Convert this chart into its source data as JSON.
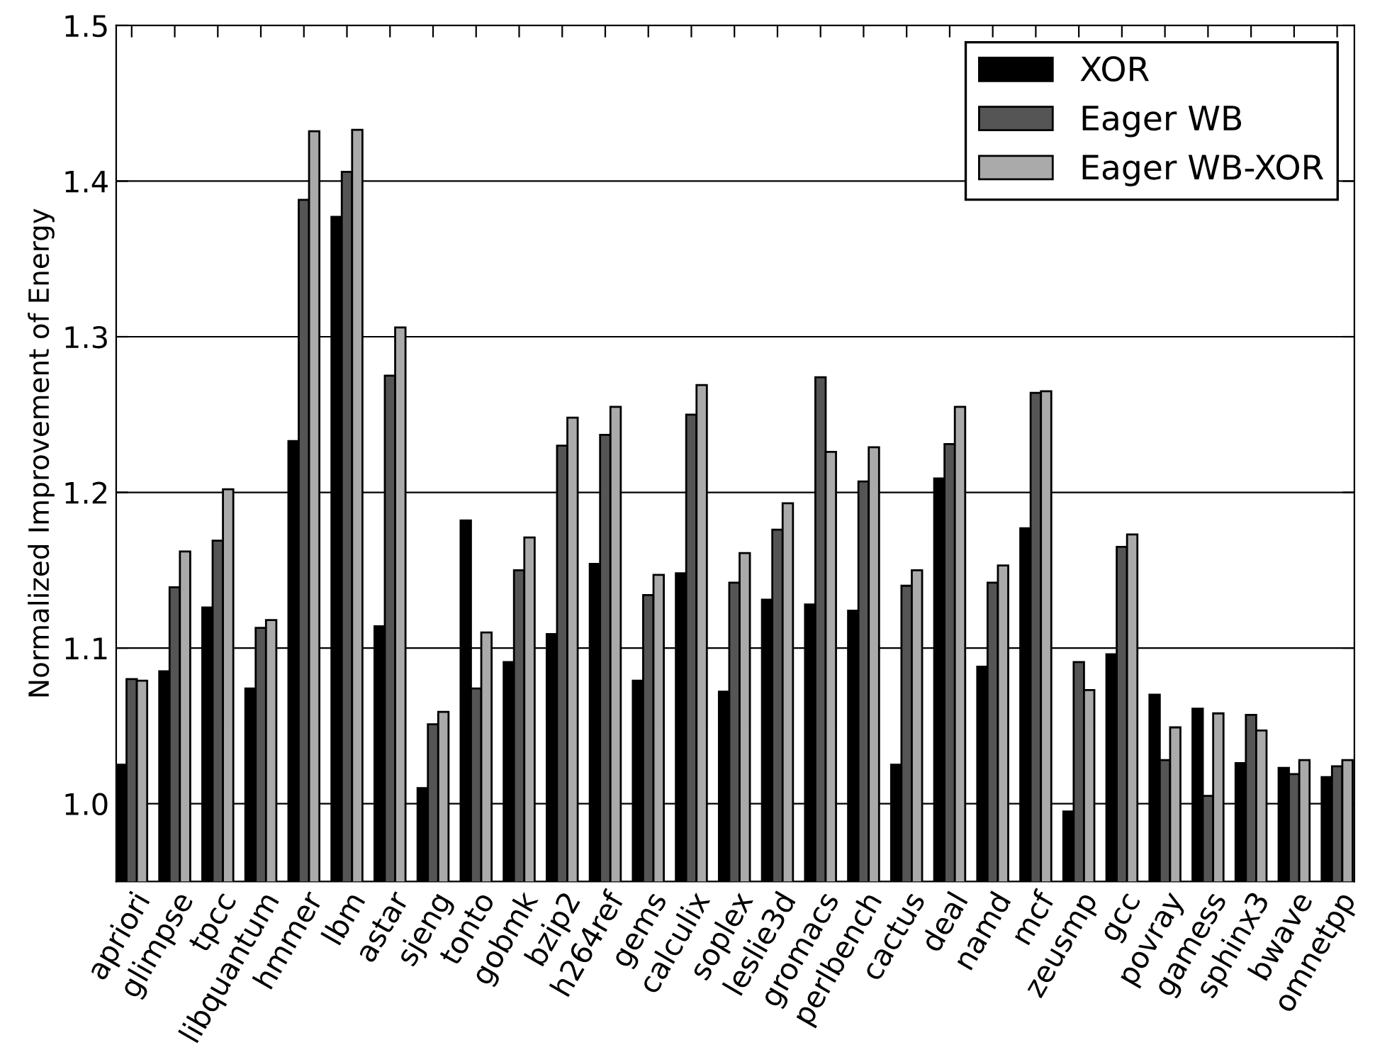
{
  "chart_data": {
    "type": "bar",
    "ylabel": "Normalized Improvement of Energy",
    "categories": [
      "apriori",
      "glimpse",
      "tpcc",
      "libquantum",
      "hmmer",
      "lbm",
      "astar",
      "sjeng",
      "tonto",
      "gobmk",
      "bzip2",
      "h264ref",
      "gems",
      "calculix",
      "soplex",
      "leslie3d",
      "gromacs",
      "perlbench",
      "cactus",
      "deal",
      "namd",
      "mcf",
      "zeusmp",
      "gcc",
      "povray",
      "gamess",
      "sphinx3",
      "bwave",
      "omnetpp"
    ],
    "series": [
      {
        "name": "XOR",
        "color": "#000000",
        "values": [
          1.025,
          1.085,
          1.126,
          1.074,
          1.233,
          1.377,
          1.114,
          1.01,
          1.182,
          1.091,
          1.109,
          1.154,
          1.079,
          1.148,
          1.072,
          1.131,
          1.128,
          1.124,
          1.025,
          1.209,
          1.088,
          1.177,
          0.995,
          1.096,
          1.07,
          1.061,
          1.026,
          1.023,
          1.017
        ]
      },
      {
        "name": "Eager WB",
        "color": "#555555",
        "values": [
          1.08,
          1.139,
          1.169,
          1.113,
          1.388,
          1.406,
          1.275,
          1.051,
          1.074,
          1.15,
          1.23,
          1.237,
          1.134,
          1.25,
          1.142,
          1.176,
          1.274,
          1.207,
          1.14,
          1.231,
          1.142,
          1.264,
          1.091,
          1.165,
          1.028,
          1.005,
          1.057,
          1.019,
          1.024
        ]
      },
      {
        "name": "Eager WB-XOR",
        "color": "#aaaaaa",
        "values": [
          1.079,
          1.162,
          1.202,
          1.118,
          1.432,
          1.433,
          1.306,
          1.059,
          1.11,
          1.171,
          1.248,
          1.255,
          1.147,
          1.269,
          1.161,
          1.193,
          1.226,
          1.229,
          1.15,
          1.255,
          1.153,
          1.265,
          1.073,
          1.173,
          1.049,
          1.058,
          1.047,
          1.028,
          1.028
        ]
      }
    ],
    "ylim": [
      0.95,
      1.5
    ],
    "yticks": [
      {
        "value": 1.0,
        "label": "1.0"
      },
      {
        "value": 1.1,
        "label": "1.1"
      },
      {
        "value": 1.2,
        "label": "1.2"
      },
      {
        "value": 1.3,
        "label": "1.3"
      },
      {
        "value": 1.4,
        "label": "1.4"
      },
      {
        "value": 1.5,
        "label": "1.5"
      }
    ],
    "grid": "y",
    "legend": "top right"
  }
}
